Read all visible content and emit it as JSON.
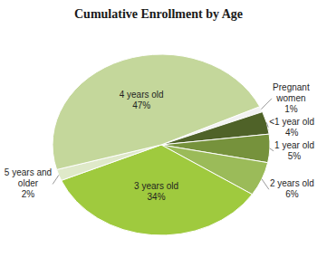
{
  "chart_data": {
    "type": "pie",
    "title": "Cumulative Enrollment by Age",
    "categories": [
      "Pregnant women",
      "<1 year old",
      "1 year old",
      "2 years old",
      "3 years old",
      "5 years and older",
      "4 years old"
    ],
    "values": [
      1,
      4,
      5,
      6,
      34,
      2,
      47
    ],
    "value_labels": [
      "1%",
      "4%",
      "5%",
      "6%",
      "34%",
      "2%",
      "47%"
    ],
    "colors": [
      "#f2f2f2",
      "#4f6228",
      "#76923c",
      "#9bbb59",
      "#9fca3e",
      "#dfe9c9",
      "#c4d79b"
    ],
    "data_labels": true
  }
}
